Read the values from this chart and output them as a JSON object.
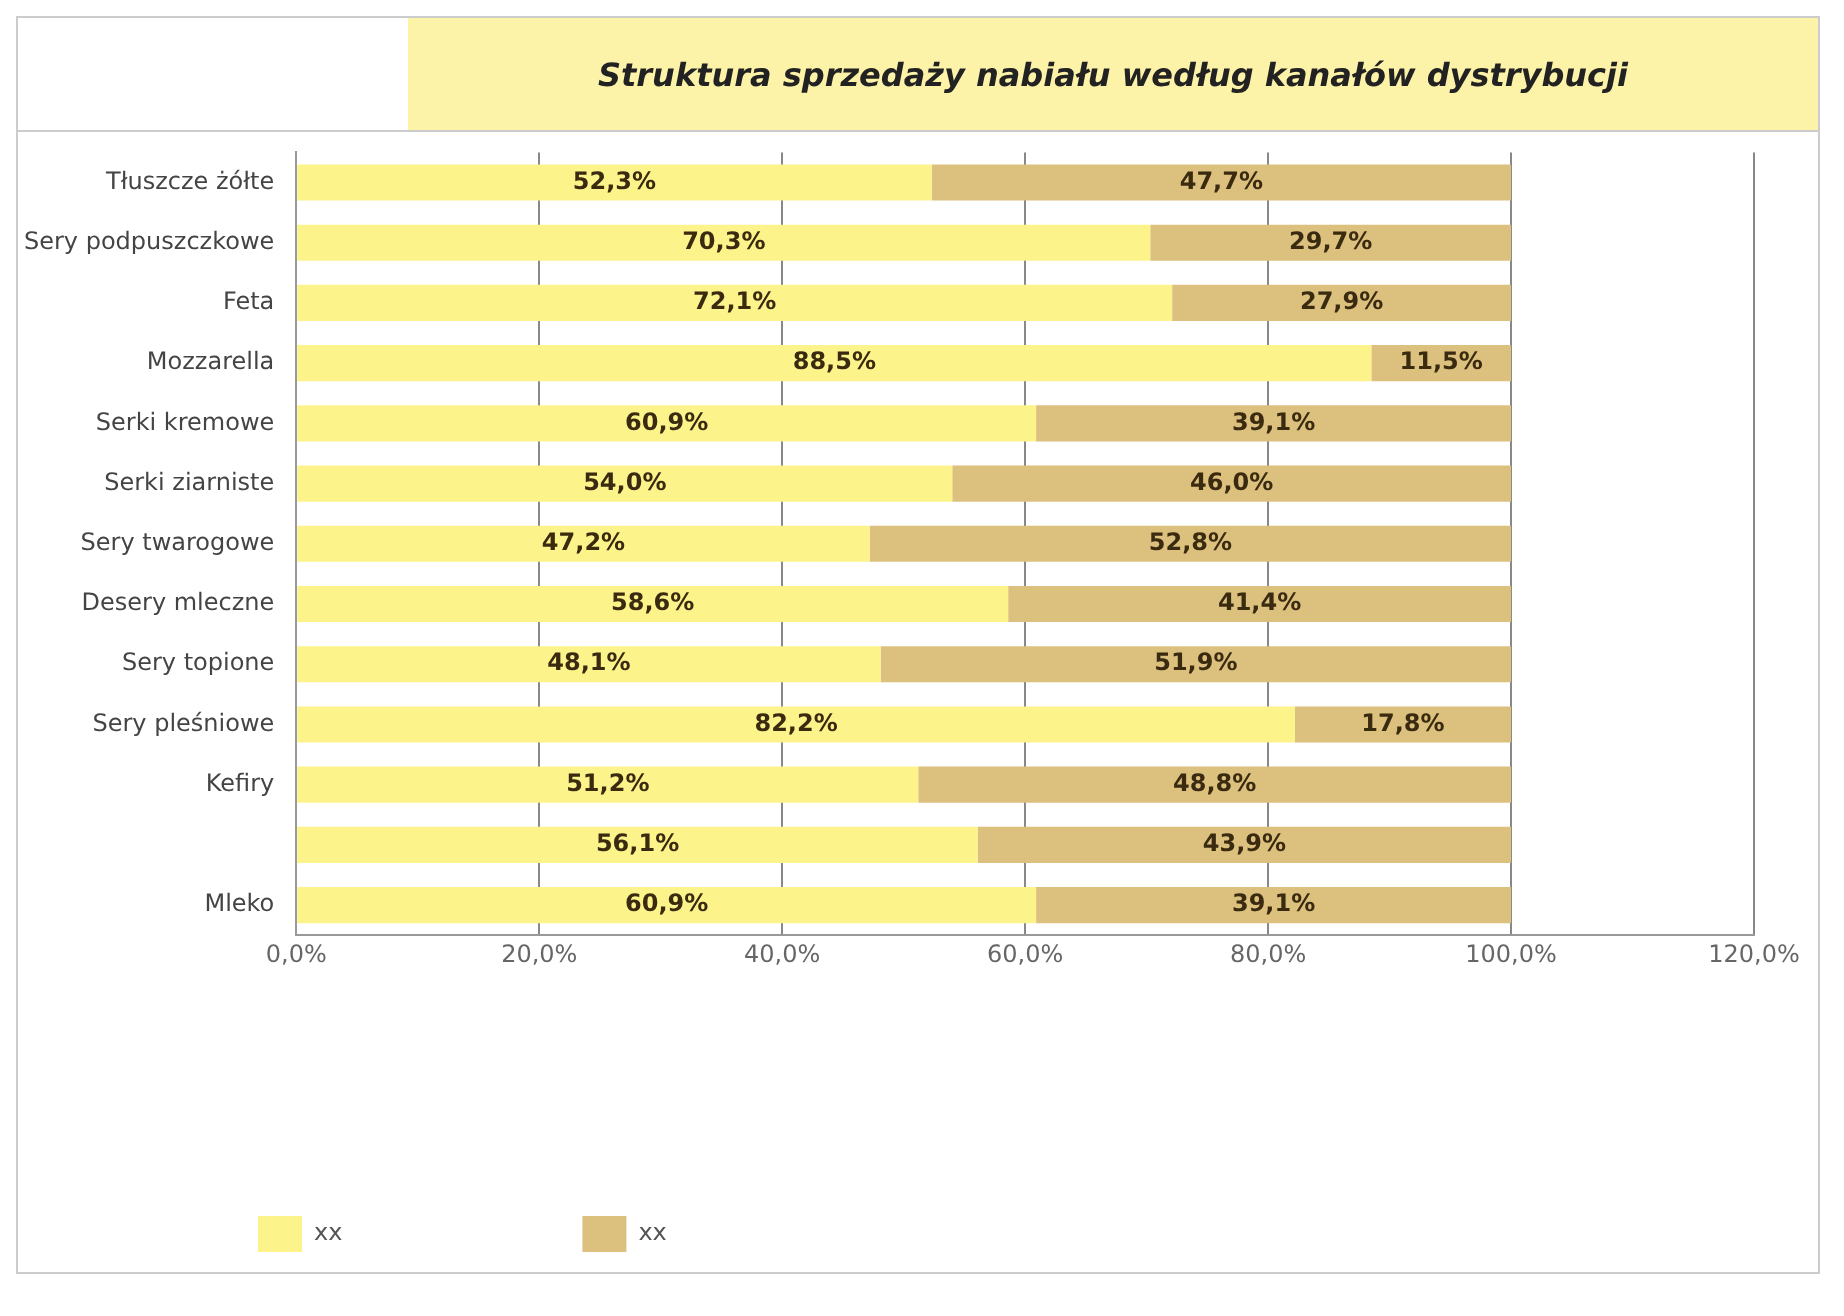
{
  "chart_data": {
    "type": "bar",
    "orientation": "horizontal",
    "stacked": true,
    "title": "Struktura sprzedaży nabiału według kanałów dystrybucji",
    "categories": [
      "Tłuszcze żółte",
      "Sery podpuszczkowe",
      "Feta",
      "Mozzarella",
      "Serki kremowe",
      "Serki ziarniste",
      "Sery twarogowe",
      "Desery mleczne",
      "Sery topione",
      "Sery pleśniowe",
      "Kefiry",
      null,
      "Mleko"
    ],
    "series": [
      {
        "name": "xx",
        "color": "#fcf38a",
        "values": [
          52.3,
          70.3,
          72.1,
          88.5,
          60.9,
          54.0,
          47.2,
          58.6,
          48.1,
          82.2,
          51.2,
          56.1,
          60.9
        ],
        "value_labels": [
          "52,3%",
          "70,3%",
          "72,1%",
          "88,5%",
          "60,9%",
          "54,0%",
          "47,2%",
          "58,6%",
          "48,1%",
          "82,2%",
          "51,2%",
          "56,1%",
          "60,9%"
        ]
      },
      {
        "name": "xx",
        "color": "#dcc07e",
        "values": [
          47.7,
          29.7,
          27.9,
          11.5,
          39.1,
          46.0,
          52.8,
          41.4,
          51.9,
          17.8,
          48.8,
          43.9,
          39.1
        ],
        "value_labels": [
          "47,7%",
          "29,7%",
          "27,9%",
          "11,5%",
          "39,1%",
          "46,0%",
          "52,8%",
          "41,4%",
          "51,9%",
          "17,8%",
          "48,8%",
          "43,9%",
          "39,1%"
        ]
      }
    ],
    "xlim": [
      0,
      120
    ],
    "xticks": [
      {
        "value": 0,
        "label": "0,0%"
      },
      {
        "value": 20,
        "label": "20,0%"
      },
      {
        "value": 40,
        "label": "40,0%"
      },
      {
        "value": 60,
        "label": "60,0%"
      },
      {
        "value": 80,
        "label": "80,0%"
      },
      {
        "value": 100,
        "label": "100,0%"
      },
      {
        "value": 120,
        "label": "120,0%"
      }
    ],
    "grid": "x",
    "legend": "bottom"
  }
}
